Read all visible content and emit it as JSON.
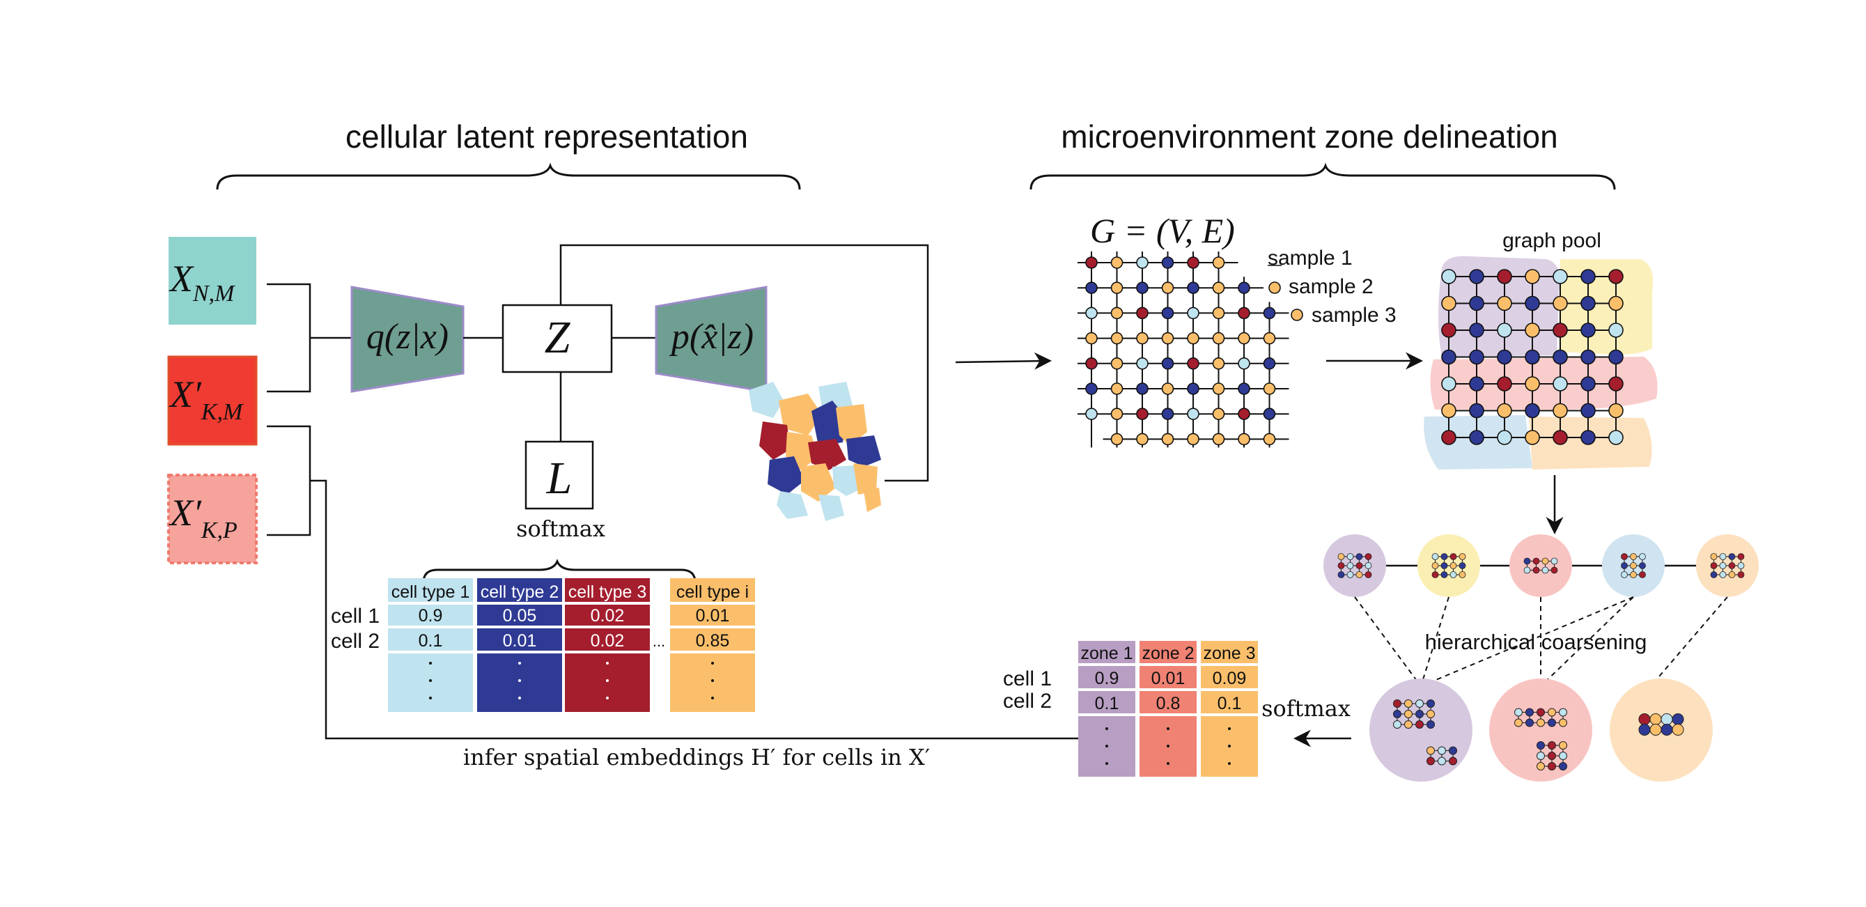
{
  "titles": {
    "left": "cellular latent representation",
    "right": "microenvironment zone delineation"
  },
  "inputs": {
    "x_nm": "X",
    "x_nm_sub": "N,M",
    "x_km": "X′",
    "x_km_sub": "K,M",
    "x_kp": "X′",
    "x_kp_sub": "K,P"
  },
  "model": {
    "encoder": "q(z|x)",
    "latent": "Z",
    "decoder": "p(x̂|z)",
    "classifier": "L",
    "softmax": "softmax"
  },
  "cell_type_table": {
    "headers": [
      "cell type 1",
      "cell type 2",
      "cell type 3",
      "cell type i"
    ],
    "row_labels": [
      "cell 1",
      "cell 2"
    ],
    "rows": [
      [
        "0.9",
        "0.05",
        "0.02",
        "0.01"
      ],
      [
        "0.1",
        "0.01",
        "0.02",
        "0.85"
      ]
    ],
    "ellipsis": "...",
    "colors": [
      "#bfe3ef",
      "#2e3a94",
      "#a41e2e",
      "#fbbf6b"
    ]
  },
  "graph": {
    "formula": "G = (V, E)",
    "samples": [
      "sample 1",
      "sample 2",
      "sample 3"
    ],
    "pool_label": "graph pool",
    "coarsening_label": "hierarchical coarsening"
  },
  "zone_table": {
    "headers": [
      "zone 1",
      "zone 2",
      "zone 3"
    ],
    "row_labels": [
      "cell 1",
      "cell 2"
    ],
    "rows": [
      [
        "0.9",
        "0.01",
        "0.09"
      ],
      [
        "0.1",
        "0.8",
        "0.1"
      ]
    ],
    "colors": [
      "#b89ec3",
      "#f08274",
      "#fbbf6b"
    ]
  },
  "bottom": {
    "softmax": "softmax",
    "infer_text": "infer spatial embeddings H′ for cells in X′"
  },
  "palette": {
    "teal_box": "#8fd3cd",
    "red_box": "#ef3b32",
    "pink_box": "#f6a39c",
    "trapezoid": "#6f9e92",
    "trapezoid_edge": "#9c8bc8",
    "node_blue": "#2e3a94",
    "node_red": "#a41e2e",
    "node_orange": "#fbbf6b",
    "node_light": "#bfe3ef"
  }
}
